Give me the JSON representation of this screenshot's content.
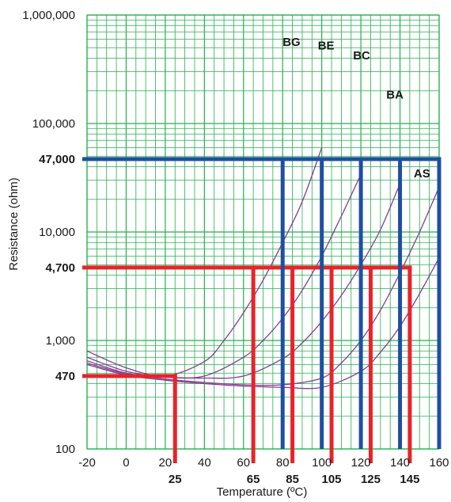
{
  "chart_data": {
    "type": "line",
    "xlabel": "Temperature (ºC)",
    "ylabel": "Resistance (ohm)",
    "xlim": [
      -20,
      160
    ],
    "ylim": [
      100,
      1000000
    ],
    "yscale": "log",
    "grid": true,
    "x_ticks": [
      -20,
      0,
      20,
      40,
      60,
      80,
      100,
      120,
      140,
      160
    ],
    "x_tick_labels": [
      "-20",
      "0",
      "20",
      "40",
      "60",
      "80",
      "100",
      "120",
      "140",
      "160"
    ],
    "x_highlight_ticks": [
      25,
      65,
      85,
      105,
      125,
      145
    ],
    "x_highlight_labels": [
      "25",
      "65",
      "85",
      "105",
      "125",
      "145"
    ],
    "y_ticks": [
      100,
      1000,
      10000,
      100000,
      1000000
    ],
    "y_tick_labels": [
      "100",
      "1,000",
      "10,000",
      "100,000",
      "1,000,000"
    ],
    "y_highlight_ticks": [
      470,
      4700,
      47000
    ],
    "y_highlight_labels": [
      "470",
      "4,700",
      "47,000"
    ],
    "colors": {
      "grid": "#22b14c",
      "curves": "#8a3a96",
      "red": "#e8232a",
      "blue": "#1f4fa0"
    },
    "series": [
      {
        "name": "BG",
        "x": [
          -20,
          0,
          20,
          40,
          50,
          60,
          70,
          80,
          90,
          100
        ],
        "y": [
          800,
          560,
          470,
          640,
          1000,
          1800,
          3600,
          8000,
          19000,
          60000
        ]
      },
      {
        "name": "BE",
        "x": [
          -20,
          0,
          20,
          40,
          60,
          70,
          80,
          90,
          100,
          110,
          120
        ],
        "y": [
          700,
          520,
          460,
          470,
          700,
          1000,
          1600,
          2900,
          6000,
          14000,
          34000
        ]
      },
      {
        "name": "BC",
        "x": [
          -20,
          0,
          20,
          40,
          60,
          80,
          90,
          100,
          110,
          120,
          130,
          140
        ],
        "y": [
          650,
          500,
          460,
          450,
          470,
          680,
          950,
          1500,
          2600,
          5000,
          10500,
          28000
        ]
      },
      {
        "name": "BA",
        "x": [
          -20,
          0,
          20,
          40,
          60,
          80,
          100,
          110,
          120,
          130,
          140,
          150,
          160
        ],
        "y": [
          620,
          490,
          440,
          410,
          390,
          390,
          450,
          620,
          1000,
          1900,
          4200,
          10000,
          26000
        ]
      },
      {
        "name": "AS",
        "x": [
          -20,
          0,
          20,
          40,
          60,
          80,
          100,
          120,
          130,
          140,
          150,
          160
        ],
        "y": [
          600,
          480,
          430,
          400,
          380,
          370,
          370,
          520,
          780,
          1350,
          2700,
          5800
        ]
      }
    ],
    "series_label_positions": [
      {
        "name": "BG",
        "x": 80,
        "y": 520000
      },
      {
        "name": "BE",
        "x": 98,
        "y": 480000
      },
      {
        "name": "BC",
        "x": 116,
        "y": 390000
      },
      {
        "name": "BA",
        "x": 133,
        "y": 170000
      },
      {
        "name": "AS",
        "x": 147,
        "y": 32000
      }
    ],
    "red_lines": {
      "horizontal": [
        {
          "y": 470,
          "x_from": -20,
          "x_to": 25
        },
        {
          "y": 4700,
          "x_from": -20,
          "x_to": 145
        }
      ],
      "vertical": [
        {
          "x": 25,
          "y_from": 100,
          "y_to": 470
        },
        {
          "x": 65,
          "y_from": 100,
          "y_to": 4700
        },
        {
          "x": 85,
          "y_from": 100,
          "y_to": 4700
        },
        {
          "x": 105,
          "y_from": 100,
          "y_to": 4700
        },
        {
          "x": 125,
          "y_from": 100,
          "y_to": 4700
        },
        {
          "x": 145,
          "y_from": 100,
          "y_to": 4700
        }
      ]
    },
    "blue_lines": {
      "horizontal": [
        {
          "y": 47000,
          "x_from": -20,
          "x_to": 160
        }
      ],
      "vertical": [
        {
          "x": 80,
          "y_from": 100,
          "y_to": 47000
        },
        {
          "x": 100,
          "y_from": 100,
          "y_to": 47000
        },
        {
          "x": 120,
          "y_from": 100,
          "y_to": 47000
        },
        {
          "x": 140,
          "y_from": 100,
          "y_to": 47000
        },
        {
          "x": 160,
          "y_from": 100,
          "y_to": 47000
        }
      ]
    }
  }
}
